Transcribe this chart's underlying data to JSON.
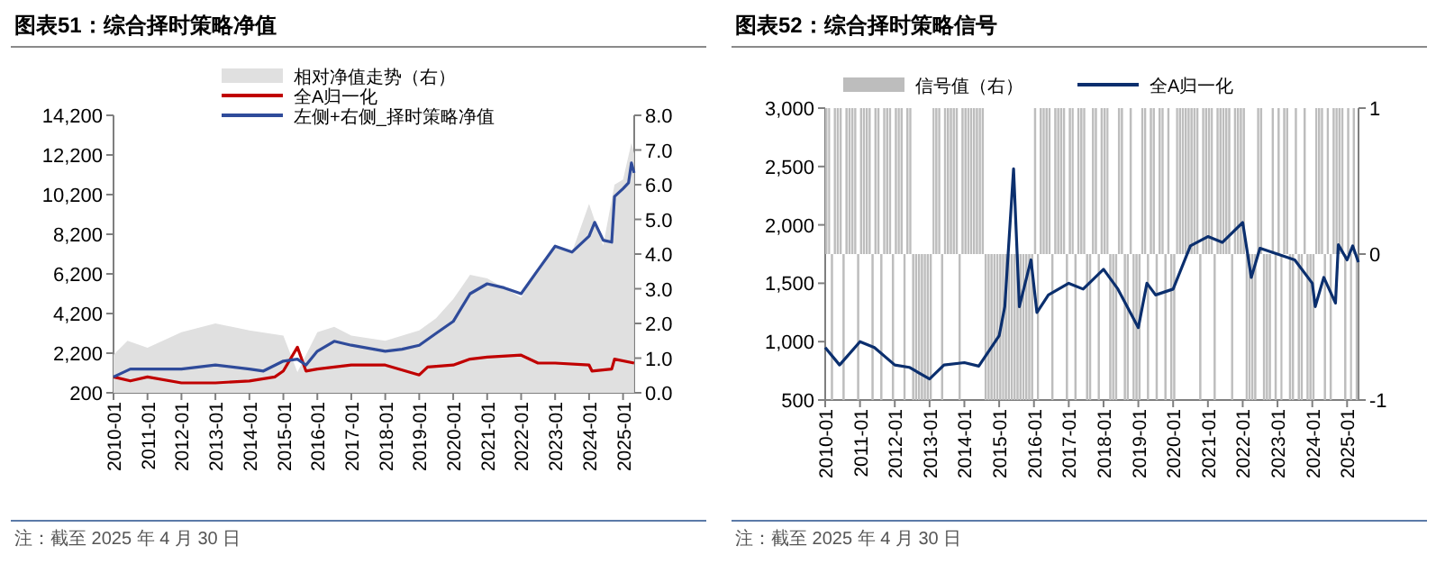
{
  "chart_data": [
    {
      "type": "line",
      "title": "图表51：综合择时策略净值",
      "xlim": [
        "2010-01",
        "2025-05"
      ],
      "xticks": [
        "2010-01",
        "2011-01",
        "2012-01",
        "2013-01",
        "2014-01",
        "2015-01",
        "2016-01",
        "2017-01",
        "2018-01",
        "2019-01",
        "2020-01",
        "2021-01",
        "2022-01",
        "2023-01",
        "2024-01",
        "2025-01"
      ],
      "ylim": [
        200,
        14200
      ],
      "yticks": [
        {
          "value": 200,
          "label": "200"
        },
        {
          "value": 2200,
          "label": "2,200"
        },
        {
          "value": 4200,
          "label": "4,200"
        },
        {
          "value": 6200,
          "label": "6,200"
        },
        {
          "value": 8200,
          "label": "8,200"
        },
        {
          "value": 10200,
          "label": "10,200"
        },
        {
          "value": 12200,
          "label": "12,200"
        },
        {
          "value": 14200,
          "label": "14,200"
        }
      ],
      "y2lim": [
        0,
        8
      ],
      "y2ticks": [
        {
          "value": 0,
          "label": "0.0"
        },
        {
          "value": 1,
          "label": "1.0"
        },
        {
          "value": 2,
          "label": "2.0"
        },
        {
          "value": 3,
          "label": "3.0"
        },
        {
          "value": 4,
          "label": "4.0"
        },
        {
          "value": 5,
          "label": "5.0"
        },
        {
          "value": 6,
          "label": "6.0"
        },
        {
          "value": 7,
          "label": "7.0"
        },
        {
          "value": 8,
          "label": "8.0"
        }
      ],
      "legend": "top",
      "grid": false,
      "series": [
        {
          "name": "相对净值走势（右）",
          "type": "area",
          "axis": "y2",
          "color": "#e0e0e0",
          "x": [
            "2010-01",
            "2010-06",
            "2011-01",
            "2012-01",
            "2013-01",
            "2014-01",
            "2015-01",
            "2015-06",
            "2016-01",
            "2016-07",
            "2017-01",
            "2018-01",
            "2019-01",
            "2019-07",
            "2020-01",
            "2020-07",
            "2021-01",
            "2022-01",
            "2022-07",
            "2023-01",
            "2023-07",
            "2024-01",
            "2024-06",
            "2024-10",
            "2025-01",
            "2025-04",
            "2025-04-30"
          ],
          "values": [
            1.1,
            1.5,
            1.3,
            1.75,
            2.0,
            1.8,
            1.65,
            0.6,
            1.75,
            1.9,
            1.65,
            1.5,
            1.8,
            2.15,
            2.7,
            3.4,
            3.3,
            2.75,
            3.55,
            4.25,
            4.05,
            5.45,
            4.25,
            6.0,
            6.15,
            7.2,
            6.9
          ]
        },
        {
          "name": "全A归一化",
          "color": "#c00000",
          "x": [
            "2010-01",
            "2010-07",
            "2011-01",
            "2012-01",
            "2013-01",
            "2014-01",
            "2014-10",
            "2015-01",
            "2015-06",
            "2015-09",
            "2016-01",
            "2017-01",
            "2018-01",
            "2019-01",
            "2019-04",
            "2020-01",
            "2020-07",
            "2021-01",
            "2022-01",
            "2022-07",
            "2023-01",
            "2024-01",
            "2024-02",
            "2024-09",
            "2024-10",
            "2025-04-30"
          ],
          "values": [
            1000,
            800,
            1000,
            700,
            700,
            800,
            1000,
            1300,
            2500,
            1300,
            1400,
            1600,
            1600,
            1100,
            1500,
            1600,
            1900,
            2000,
            2100,
            1700,
            1700,
            1600,
            1300,
            1400,
            1900,
            1700
          ]
        },
        {
          "name": "左侧+右侧_择时策略净值",
          "color": "#2f4b9a",
          "x": [
            "2010-01",
            "2010-07",
            "2011-01",
            "2012-01",
            "2013-01",
            "2014-01",
            "2014-06",
            "2015-01",
            "2015-06",
            "2015-09",
            "2016-01",
            "2016-07",
            "2017-01",
            "2018-01",
            "2018-07",
            "2019-01",
            "2019-07",
            "2020-01",
            "2020-07",
            "2021-01",
            "2021-07",
            "2022-01",
            "2022-07",
            "2023-01",
            "2023-07",
            "2024-01",
            "2024-03",
            "2024-06",
            "2024-09",
            "2024-10",
            "2025-01",
            "2025-03",
            "2025-04",
            "2025-04-30"
          ],
          "values": [
            1000,
            1400,
            1400,
            1400,
            1600,
            1400,
            1300,
            1800,
            1900,
            1600,
            2300,
            2800,
            2600,
            2300,
            2400,
            2600,
            3200,
            3800,
            5200,
            5700,
            5500,
            5200,
            6400,
            7600,
            7300,
            8100,
            8800,
            7900,
            7800,
            10100,
            10500,
            10800,
            11800,
            11300
          ]
        }
      ],
      "annotations": [
        "注：截至 2025 年 4 月 30 日"
      ]
    },
    {
      "type": "line",
      "title": "图表52：综合择时策略信号",
      "xlim": [
        "2010-01",
        "2025-05"
      ],
      "xticks": [
        "2010-01",
        "2011-01",
        "2012-01",
        "2013-01",
        "2014-01",
        "2015-01",
        "2016-01",
        "2017-01",
        "2018-01",
        "2019-01",
        "2020-01",
        "2021-01",
        "2022-01",
        "2023-01",
        "2024-01",
        "2025-01"
      ],
      "ylim": [
        500,
        3000
      ],
      "yticks": [
        {
          "value": 500,
          "label": "500"
        },
        {
          "value": 1000,
          "label": "1,000"
        },
        {
          "value": 1500,
          "label": "1,500"
        },
        {
          "value": 2000,
          "label": "2,000"
        },
        {
          "value": 2500,
          "label": "2,500"
        },
        {
          "value": 3000,
          "label": "3,000"
        }
      ],
      "y2lim": [
        -1,
        1
      ],
      "y2ticks": [
        -1,
        0,
        1
      ],
      "legend": "top",
      "grid": false,
      "series": [
        {
          "name": "信号值（右）",
          "type": "bar",
          "axis": "y2",
          "color": "#bdbdbd",
          "x": [
            "2010-01",
            "2010-02",
            "2010-03",
            "2010-04",
            "2010-05",
            "2010-06",
            "2010-07",
            "2010-08",
            "2010-09",
            "2010-10",
            "2010-11",
            "2010-12",
            "2011-01",
            "2011-02",
            "2011-03",
            "2011-04",
            "2011-05",
            "2011-06",
            "2011-07",
            "2011-08",
            "2011-09",
            "2011-10",
            "2011-11",
            "2011-12",
            "2012-01",
            "2012-02",
            "2012-03",
            "2012-04",
            "2012-05",
            "2012-06",
            "2012-07",
            "2012-08",
            "2012-09",
            "2012-10",
            "2012-11",
            "2012-12",
            "2013-01",
            "2013-02",
            "2013-03",
            "2013-04",
            "2013-05",
            "2013-06",
            "2013-07",
            "2013-08",
            "2013-09",
            "2013-10",
            "2013-11",
            "2013-12",
            "2014-01",
            "2014-02",
            "2014-03",
            "2014-04",
            "2014-05",
            "2014-06",
            "2014-07",
            "2014-08",
            "2014-09",
            "2014-10",
            "2014-11",
            "2014-12",
            "2015-01",
            "2015-02",
            "2015-03",
            "2015-04",
            "2015-05",
            "2015-06",
            "2015-07",
            "2015-08",
            "2015-09",
            "2015-10",
            "2015-11",
            "2015-12",
            "2016-01",
            "2016-02",
            "2016-03",
            "2016-04",
            "2016-05",
            "2016-06",
            "2016-07",
            "2016-08",
            "2016-09",
            "2016-10",
            "2016-11",
            "2016-12",
            "2017-01",
            "2017-02",
            "2017-03",
            "2017-04",
            "2017-05",
            "2017-06",
            "2017-07",
            "2017-08",
            "2017-09",
            "2017-10",
            "2017-11",
            "2017-12",
            "2018-01",
            "2018-02",
            "2018-03",
            "2018-04",
            "2018-05",
            "2018-06",
            "2018-07",
            "2018-08",
            "2018-09",
            "2018-10",
            "2018-11",
            "2018-12",
            "2019-01",
            "2019-02",
            "2019-03",
            "2019-04",
            "2019-05",
            "2019-06",
            "2019-07",
            "2019-08",
            "2019-09",
            "2019-10",
            "2019-11",
            "2019-12",
            "2020-01",
            "2020-02",
            "2020-03",
            "2020-04",
            "2020-05",
            "2020-06",
            "2020-07",
            "2020-08",
            "2020-09",
            "2020-10",
            "2020-11",
            "2020-12",
            "2021-01",
            "2021-02",
            "2021-03",
            "2021-04",
            "2021-05",
            "2021-06",
            "2021-07",
            "2021-08",
            "2021-09",
            "2021-10",
            "2021-11",
            "2021-12",
            "2022-01",
            "2022-02",
            "2022-03",
            "2022-04",
            "2022-05",
            "2022-06",
            "2022-07",
            "2022-08",
            "2022-09",
            "2022-10",
            "2022-11",
            "2022-12",
            "2023-01",
            "2023-02",
            "2023-03",
            "2023-04",
            "2023-05",
            "2023-06",
            "2023-07",
            "2023-08",
            "2023-09",
            "2023-10",
            "2023-11",
            "2023-12",
            "2024-01",
            "2024-02",
            "2024-03",
            "2024-04",
            "2024-05",
            "2024-06",
            "2024-07",
            "2024-08",
            "2024-09",
            "2024-10",
            "2024-11",
            "2024-12",
            "2025-01",
            "2025-02",
            "2025-03",
            "2025-04"
          ],
          "values": [
            1,
            1,
            -1,
            1,
            1,
            1,
            -1,
            1,
            1,
            1,
            1,
            -1,
            1,
            1,
            1,
            1,
            -1,
            1,
            1,
            -1,
            1,
            1,
            1,
            -1,
            1,
            1,
            1,
            -1,
            1,
            1,
            -1,
            -1,
            -1,
            -1,
            -1,
            -1,
            -1,
            1,
            1,
            1,
            -1,
            1,
            1,
            1,
            1,
            1,
            -1,
            1,
            1,
            1,
            1,
            1,
            1,
            1,
            1,
            -1,
            -1,
            -1,
            -1,
            -1,
            -1,
            -1,
            -1,
            -1,
            -1,
            -1,
            -1,
            -1,
            -1,
            -1,
            -1,
            -1,
            1,
            -1,
            1,
            1,
            1,
            1,
            -1,
            1,
            1,
            1,
            1,
            -1,
            1,
            1,
            -1,
            1,
            1,
            1,
            -1,
            -1,
            1,
            1,
            -1,
            1,
            1,
            1,
            -1,
            -1,
            -1,
            1,
            1,
            -1,
            -1,
            1,
            -1,
            -1,
            -1,
            1,
            1,
            -1,
            1,
            1,
            -1,
            1,
            1,
            -1,
            1,
            -1,
            -1,
            1,
            1,
            1,
            1,
            1,
            1,
            1,
            1,
            -1,
            1,
            1,
            1,
            1,
            -1,
            1,
            1,
            1,
            1,
            1,
            -1,
            1,
            1,
            1,
            1,
            -1,
            -1,
            -1,
            -1,
            1,
            1,
            -1,
            -1,
            -1,
            1,
            -1,
            1,
            -1,
            1,
            1,
            -1,
            -1,
            1,
            -1,
            -1,
            1,
            -1,
            -1,
            -1,
            1,
            1,
            1,
            -1,
            1,
            -1,
            1,
            1,
            1,
            1,
            -1,
            1,
            -1,
            1,
            -1
          ]
        },
        {
          "name": "全A归一化",
          "color": "#0b2f6e",
          "x": [
            "2010-01",
            "2010-06",
            "2011-01",
            "2011-06",
            "2012-01",
            "2012-06",
            "2013-01",
            "2013-06",
            "2014-01",
            "2014-06",
            "2015-01",
            "2015-03",
            "2015-06",
            "2015-08",
            "2015-12",
            "2016-02",
            "2016-06",
            "2017-01",
            "2017-06",
            "2018-01",
            "2018-06",
            "2019-01",
            "2019-04",
            "2019-07",
            "2020-01",
            "2020-07",
            "2021-01",
            "2021-06",
            "2022-01",
            "2022-04",
            "2022-07",
            "2023-01",
            "2023-07",
            "2024-01",
            "2024-02",
            "2024-05",
            "2024-09",
            "2024-10",
            "2025-01",
            "2025-03",
            "2025-04-30"
          ],
          "values": [
            950,
            800,
            1000,
            950,
            800,
            780,
            680,
            800,
            820,
            790,
            1050,
            1300,
            2480,
            1300,
            1700,
            1250,
            1400,
            1500,
            1450,
            1620,
            1450,
            1120,
            1500,
            1400,
            1450,
            1820,
            1900,
            1850,
            2020,
            1550,
            1800,
            1750,
            1700,
            1500,
            1300,
            1550,
            1330,
            1830,
            1700,
            1820,
            1680
          ]
        }
      ],
      "annotations": [
        "注：截至 2025 年 4 月 30 日"
      ]
    }
  ]
}
